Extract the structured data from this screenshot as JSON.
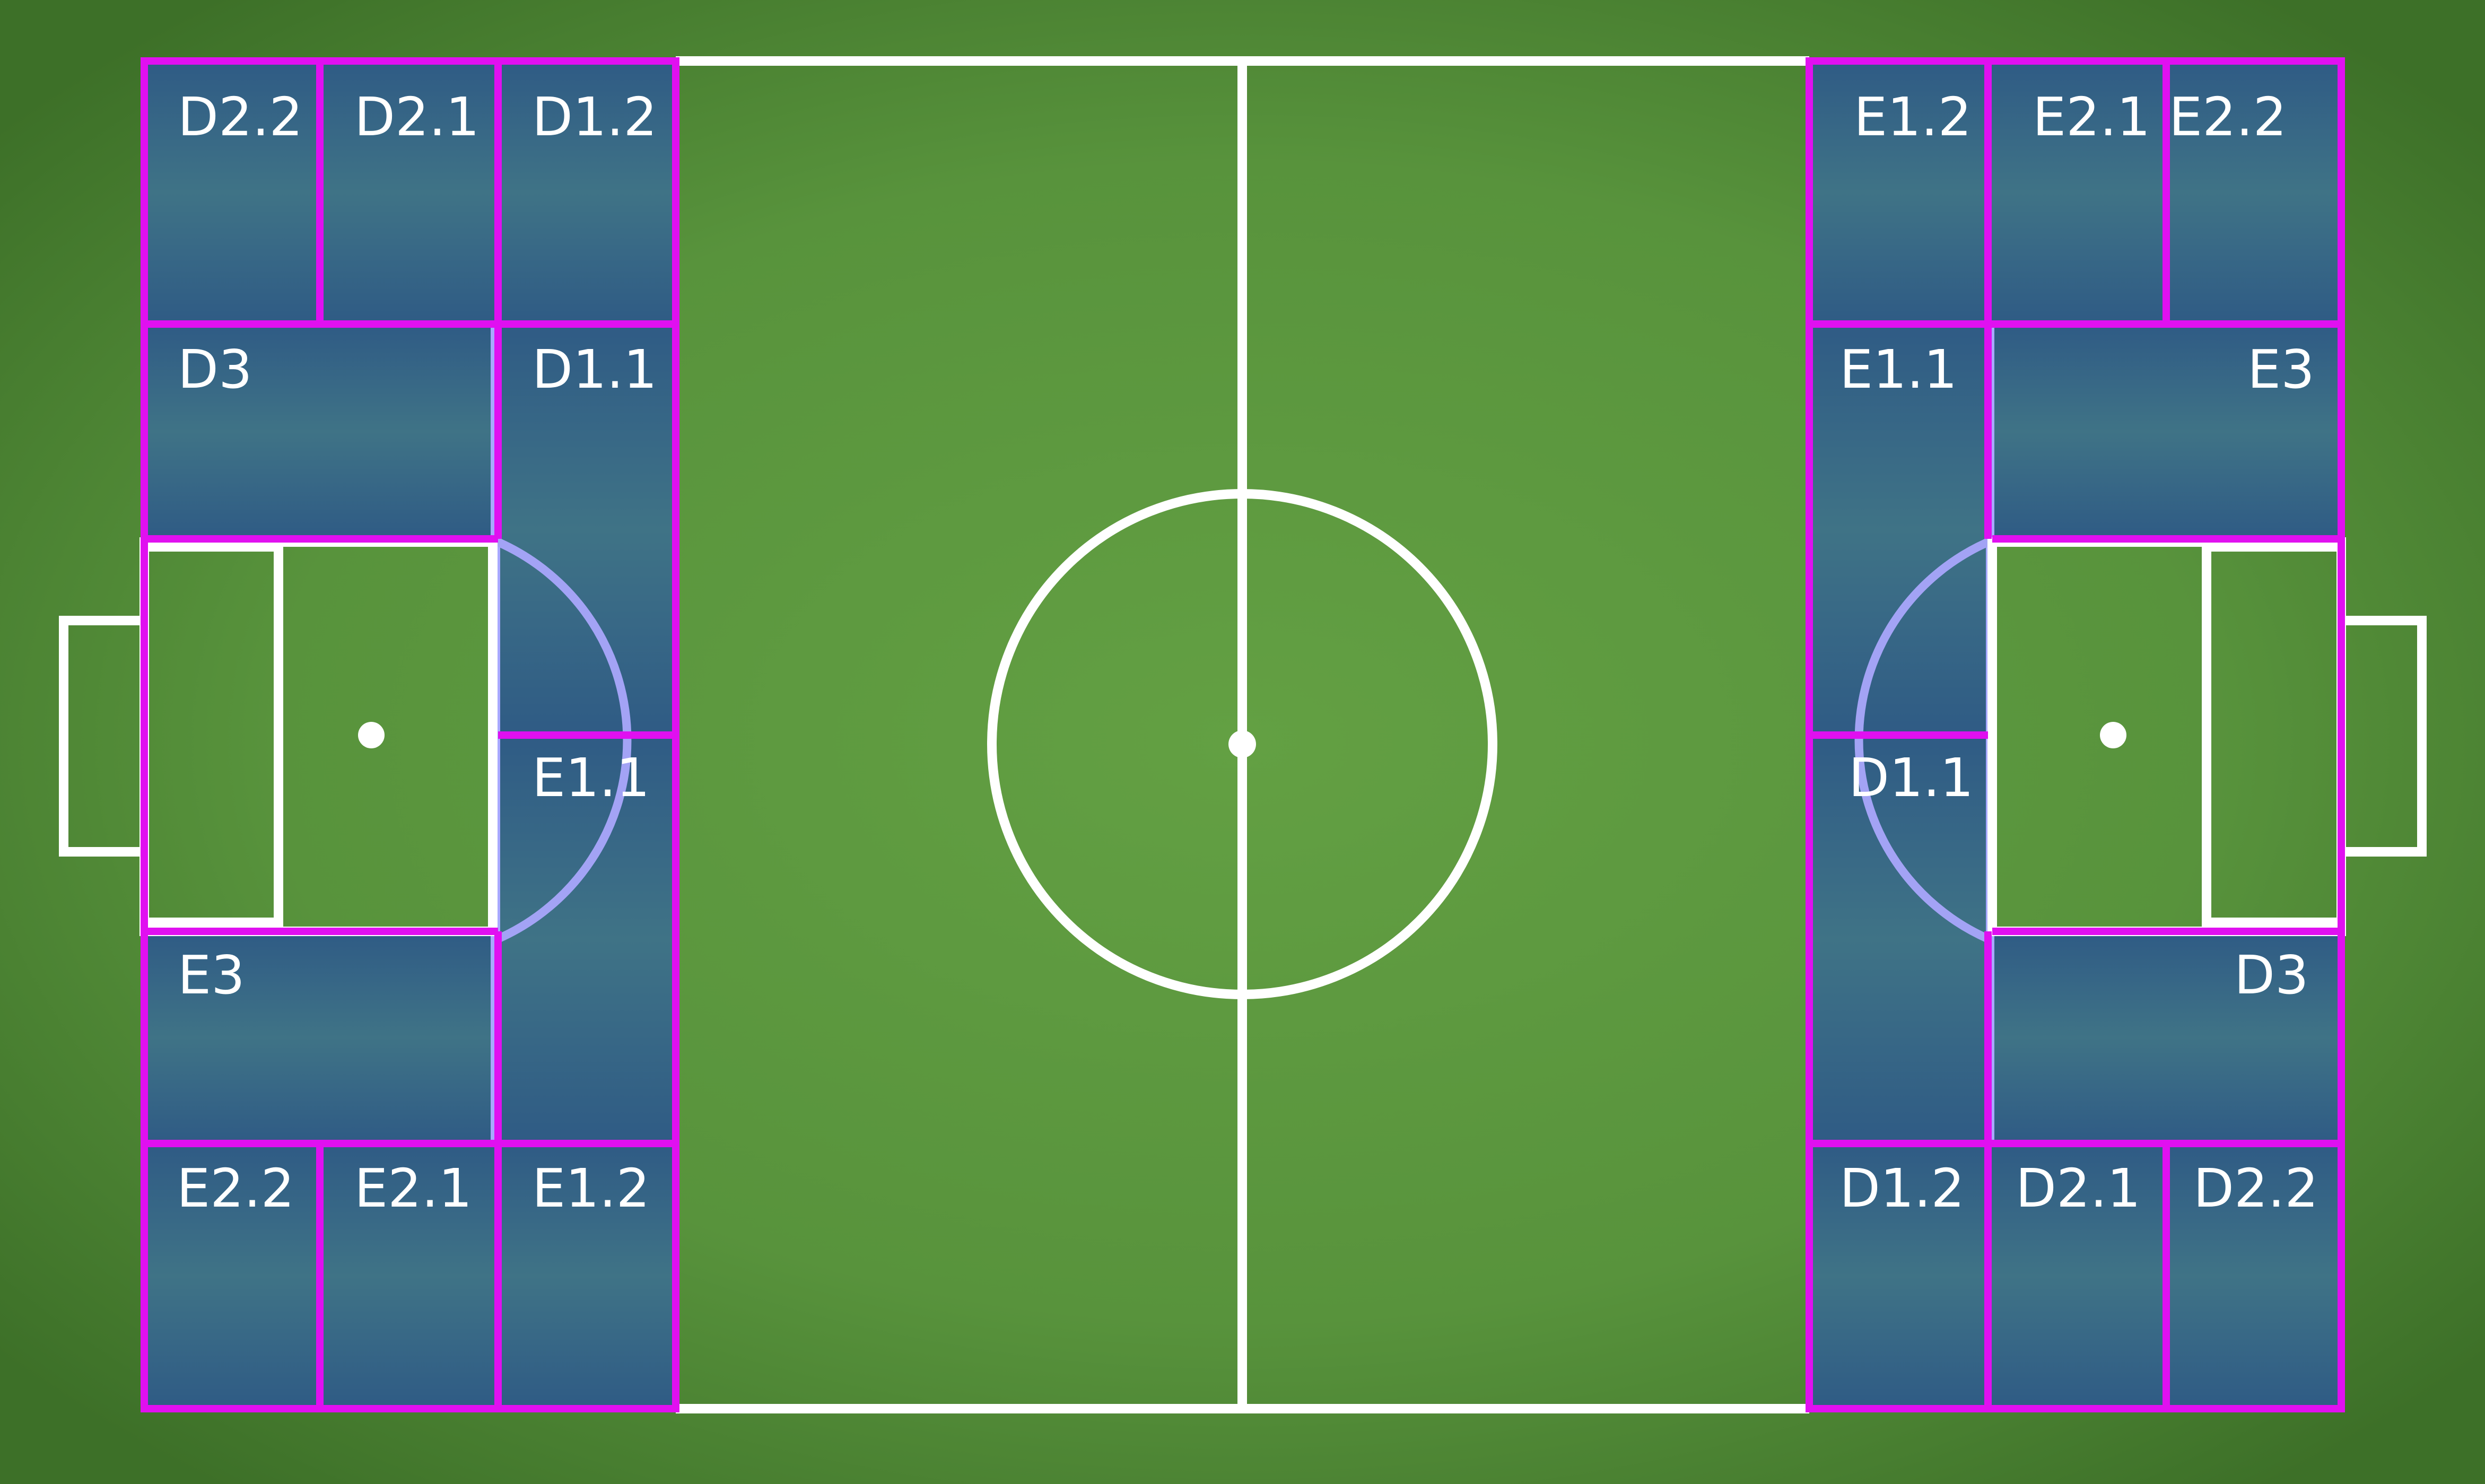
{
  "colors": {
    "grass_center": "#63a043",
    "grass_edge": "#3d7028",
    "zone_fill_top": "#2f5b85",
    "zone_fill_mid": "#3f7386",
    "zone_border": "#e010f0",
    "zone_inner_border": "#a8a8ff",
    "penalty_arc": "#a3a3f5",
    "lines": "#ffffff"
  },
  "zones": {
    "left_top_row": [
      "D2.2",
      "D2.1",
      "D1.2"
    ],
    "left_d3": "D3",
    "left_d11": "D1.1",
    "left_e11": "E1.1",
    "left_e3": "E3",
    "left_bottom_row": [
      "E2.2",
      "E2.1",
      "E1.2"
    ],
    "right_top_row": [
      "E1.2",
      "E2.1",
      "E2.2"
    ],
    "right_e11": "E1.1",
    "right_e3": "E3",
    "right_d11": "D1.1",
    "right_d3": "D3",
    "right_bottom_row": [
      "D1.2",
      "D2.1",
      "D2.2"
    ]
  }
}
